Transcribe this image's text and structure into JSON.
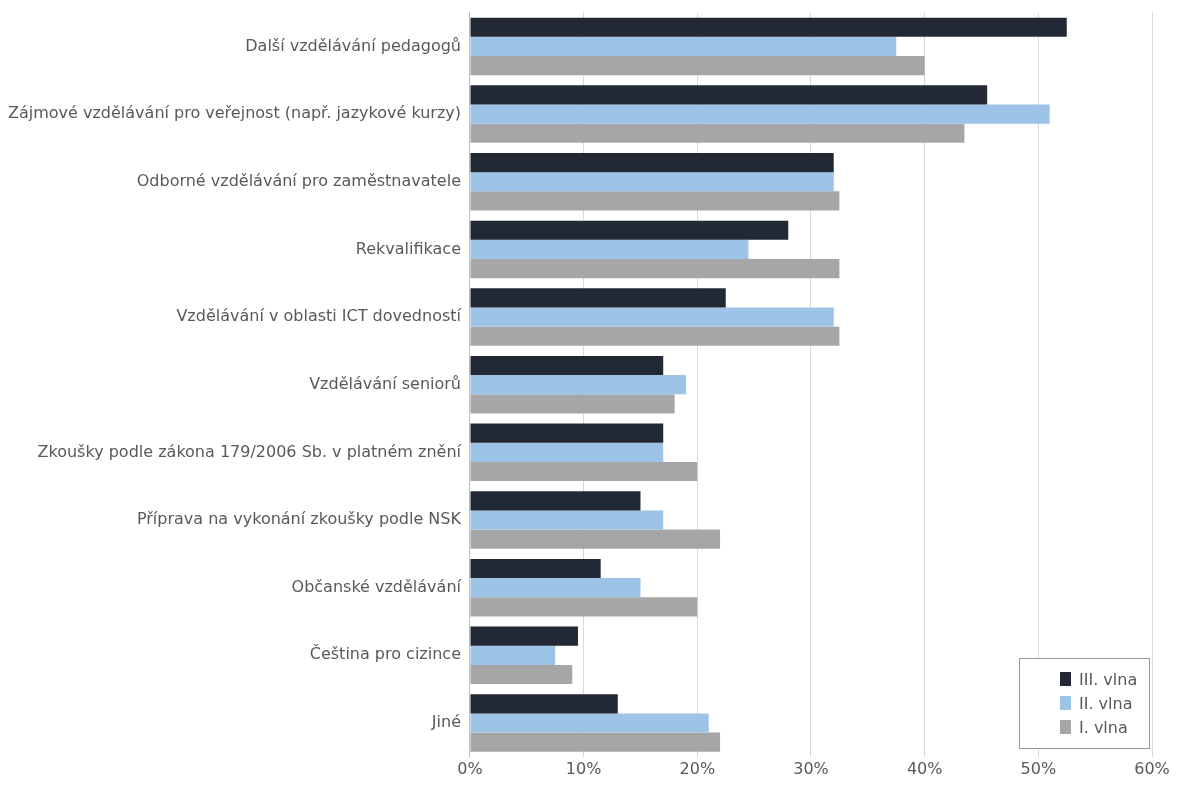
{
  "chart_data": {
    "type": "bar",
    "orientation": "horizontal",
    "categories": [
      "Další vzdělávání pedagogů",
      "Zájmové vzdělávání pro veřejnost (např. jazykové kurzy)",
      "Odborné vzdělávání pro zaměstnavatele",
      "Rekvalifikace",
      "Vzdělávání v oblasti ICT dovedností",
      "Vzdělávání seniorů",
      "Zkoušky podle zákona 179/2006 Sb. v platném znění",
      "Příprava na vykonání zkoušky podle NSK",
      "Občanské vzdělávání",
      "Čeština pro cizince",
      "Jiné"
    ],
    "series": [
      {
        "name": "III. vlna",
        "color": "#222935",
        "values": [
          52.5,
          45.5,
          32,
          28,
          22.5,
          17,
          17,
          15,
          11.5,
          9.5,
          13
        ]
      },
      {
        "name": "II. vlna",
        "color": "#9dc3e6",
        "values": [
          37.5,
          51,
          32,
          24.5,
          32,
          19,
          17,
          17,
          15,
          7.5,
          21
        ]
      },
      {
        "name": "I. vlna",
        "color": "#a6a6a6",
        "values": [
          40,
          43.5,
          32.5,
          32.5,
          32.5,
          18,
          20,
          22,
          20,
          9,
          22
        ]
      }
    ],
    "xlim": [
      0,
      60
    ],
    "xticks": [
      {
        "value": 0,
        "label": "0%"
      },
      {
        "value": 10,
        "label": "10%"
      },
      {
        "value": 20,
        "label": "20%"
      },
      {
        "value": 30,
        "label": "30%"
      },
      {
        "value": 40,
        "label": "40%"
      },
      {
        "value": 50,
        "label": "50%"
      },
      {
        "value": 60,
        "label": "60%"
      }
    ],
    "grid": "x",
    "legend": "bottom right"
  }
}
